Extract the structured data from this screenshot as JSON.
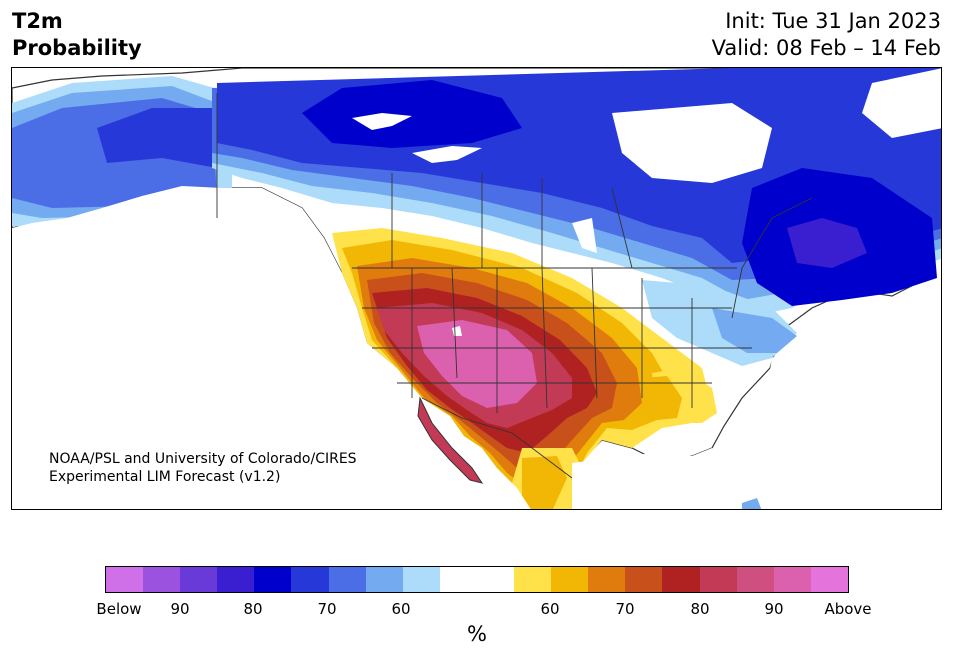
{
  "title": {
    "left_line1": "T2m",
    "left_line2": "Probability",
    "init": "Init: Tue 31 Jan 2023",
    "valid": "Valid: 08 Feb – 14 Feb"
  },
  "credit": {
    "line1": "NOAA/PSL and University of Colorado/CIRES",
    "line2": "Experimental LIM Forecast (v1.2)"
  },
  "colorbar": {
    "colors": [
      "#d070e8",
      "#9a52df",
      "#6a3ad8",
      "#3a1fd0",
      "#0000cc",
      "#2638d8",
      "#4b6ee6",
      "#74aaf0",
      "#acdcfa",
      "#ffffff",
      "#ffffff",
      "#ffe24a",
      "#f2b705",
      "#e07c0e",
      "#c8501a",
      "#b02222",
      "#c23a55",
      "#cf4f80",
      "#db60ad",
      "#e474dc"
    ],
    "tick_labels": [
      "Below",
      "90",
      "80",
      "70",
      "60",
      "60",
      "70",
      "80",
      "90",
      "Above"
    ],
    "units": "%"
  },
  "map_colors": {
    "ocean": "#ffffff",
    "borders": "#333333",
    "cold_light": "#acdcfa",
    "cold_mid": "#74aaf0",
    "cold_med": "#4b6ee6",
    "cold_strong": "#2638d8",
    "cold_deep": "#0000cc",
    "cold_extreme": "#3a1fd0",
    "warm_light": "#ffe24a",
    "warm_mid": "#f2b705",
    "warm_med": "#e07c0e",
    "warm_strong": "#c8501a",
    "warm_deep": "#b02222",
    "warm_extreme": "#c23a55",
    "warm_peak": "#db60ad"
  }
}
